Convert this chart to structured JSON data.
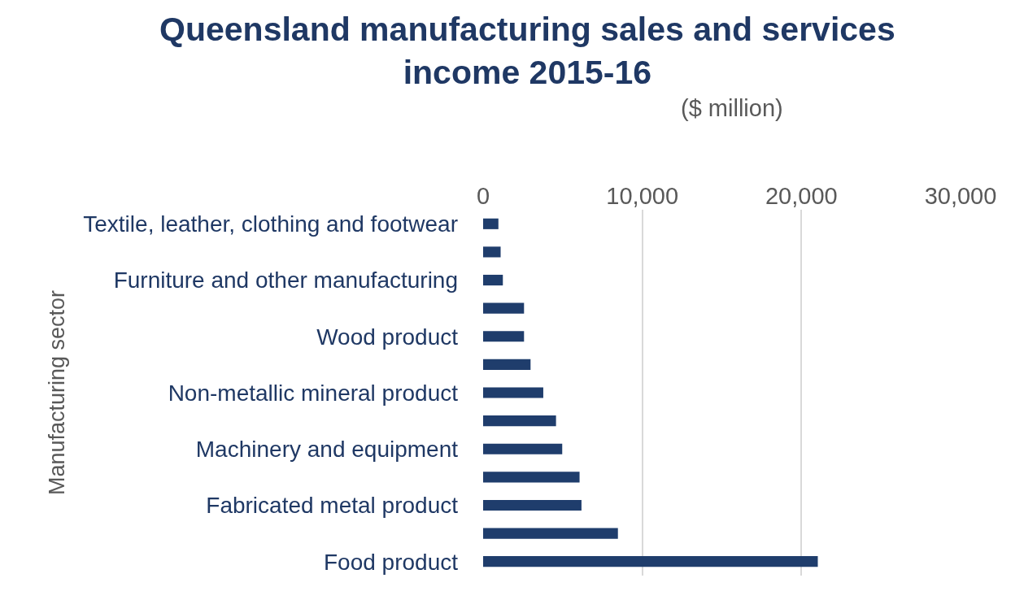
{
  "chart_data": {
    "type": "bar",
    "orientation": "horizontal",
    "title": "Queensland manufacturing sales and services income 2015-16",
    "subtitle": "($ million)",
    "ylabel": "Manufacturing sector",
    "categories": [
      "Textile, leather, clothing and footwear",
      null,
      "Furniture and other manufacturing",
      null,
      "Wood product",
      null,
      "Non-metallic mineral product",
      null,
      "Machinery and equipment",
      null,
      "Fabricated metal product",
      null,
      "Food product"
    ],
    "values": [
      960,
      1100,
      1240,
      2570,
      2570,
      2980,
      3780,
      4580,
      4970,
      6060,
      6180,
      8470,
      21030
    ],
    "color": "#1f3d6c",
    "xlim": [
      0,
      30000
    ],
    "xticks": [
      0,
      {
        "value": 10000,
        "label": "10,000"
      },
      {
        "value": 20000,
        "label": "20,000"
      },
      {
        "value": 30000,
        "label": "30,000"
      }
    ],
    "grid": "x",
    "legend": false
  }
}
